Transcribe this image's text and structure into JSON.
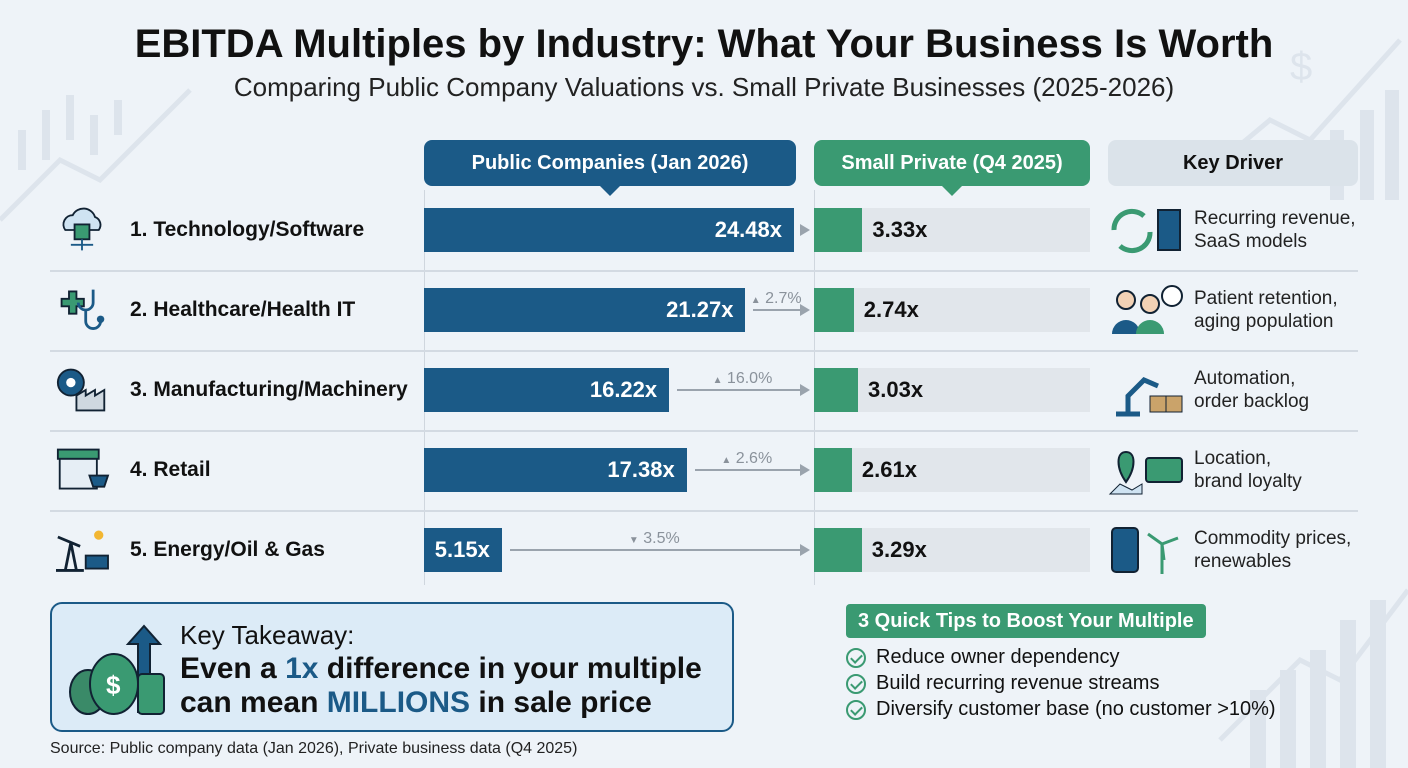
{
  "title": "EBITDA Multiples by Industry: What Your Business Is Worth",
  "subtitle": "Comparing Public Company Valuations vs. Small Private Businesses (2025-2026)",
  "colors": {
    "public": "#1b5a87",
    "private": "#3a9a72",
    "track": "#e1e6eb",
    "background": "#eef3f8"
  },
  "chart_data": {
    "type": "bar",
    "orientation": "horizontal",
    "categories": [
      "1. Technology/Software",
      "2. Healthcare/Health IT",
      "3. Manufacturing/Machinery",
      "4. Retail",
      "5. Energy/Oil & Gas"
    ],
    "series": [
      {
        "name": "Public Companies (Jan 2026)",
        "values": [
          24.48,
          21.27,
          16.22,
          17.38,
          5.15
        ],
        "labels": [
          "24.48x",
          "21.27x",
          "16.22x",
          "17.38x",
          "5.15x"
        ]
      },
      {
        "name": "Small Private (Q4 2025)",
        "values": [
          3.33,
          2.74,
          3.03,
          2.61,
          3.29
        ],
        "labels": [
          "3.33x",
          "2.74x",
          "3.03x",
          "2.61x",
          "3.29x"
        ]
      }
    ],
    "changes": [
      {
        "direction": "",
        "text": ""
      },
      {
        "direction": "up",
        "text": "2.7%"
      },
      {
        "direction": "up",
        "text": "16.0%"
      },
      {
        "direction": "up",
        "text": "2.6%"
      },
      {
        "direction": "down",
        "text": "3.5%"
      }
    ],
    "key_driver_header": "Key Driver",
    "key_drivers": [
      [
        "Recurring revenue,",
        "SaaS models"
      ],
      [
        "Patient retention,",
        "aging population"
      ],
      [
        "Automation,",
        "order backlog"
      ],
      [
        "Location,",
        "brand loyalty"
      ],
      [
        "Commodity prices,",
        "renewables"
      ]
    ],
    "industry_icons": [
      "cloud-chip-icon",
      "medical-cross-stethoscope-icon",
      "gear-factory-icon",
      "storefront-cart-icon",
      "oil-pump-solar-icon"
    ],
    "driver_icons": [
      "recurring-saas-icon",
      "elderly-clock-icon",
      "robot-arm-boxes-icon",
      "location-card-icon",
      "barrel-wind-turbine-icon"
    ]
  },
  "takeaway": {
    "title": "Key Takeaway:",
    "line1_a": "Even a ",
    "line1_hl": "1x",
    "line1_b": " difference in your multiple",
    "line2_a": "can mean ",
    "line2_hl": "MILLIONS",
    "line2_b": " in sale price"
  },
  "tips": {
    "title": "3 Quick Tips to Boost Your Multiple",
    "items": [
      "Reduce owner dependency",
      "Build recurring revenue streams",
      "Diversify customer base (no customer >10%)"
    ]
  },
  "source": "Source: Public company data (Jan 2026), Private business data (Q4 2025)"
}
